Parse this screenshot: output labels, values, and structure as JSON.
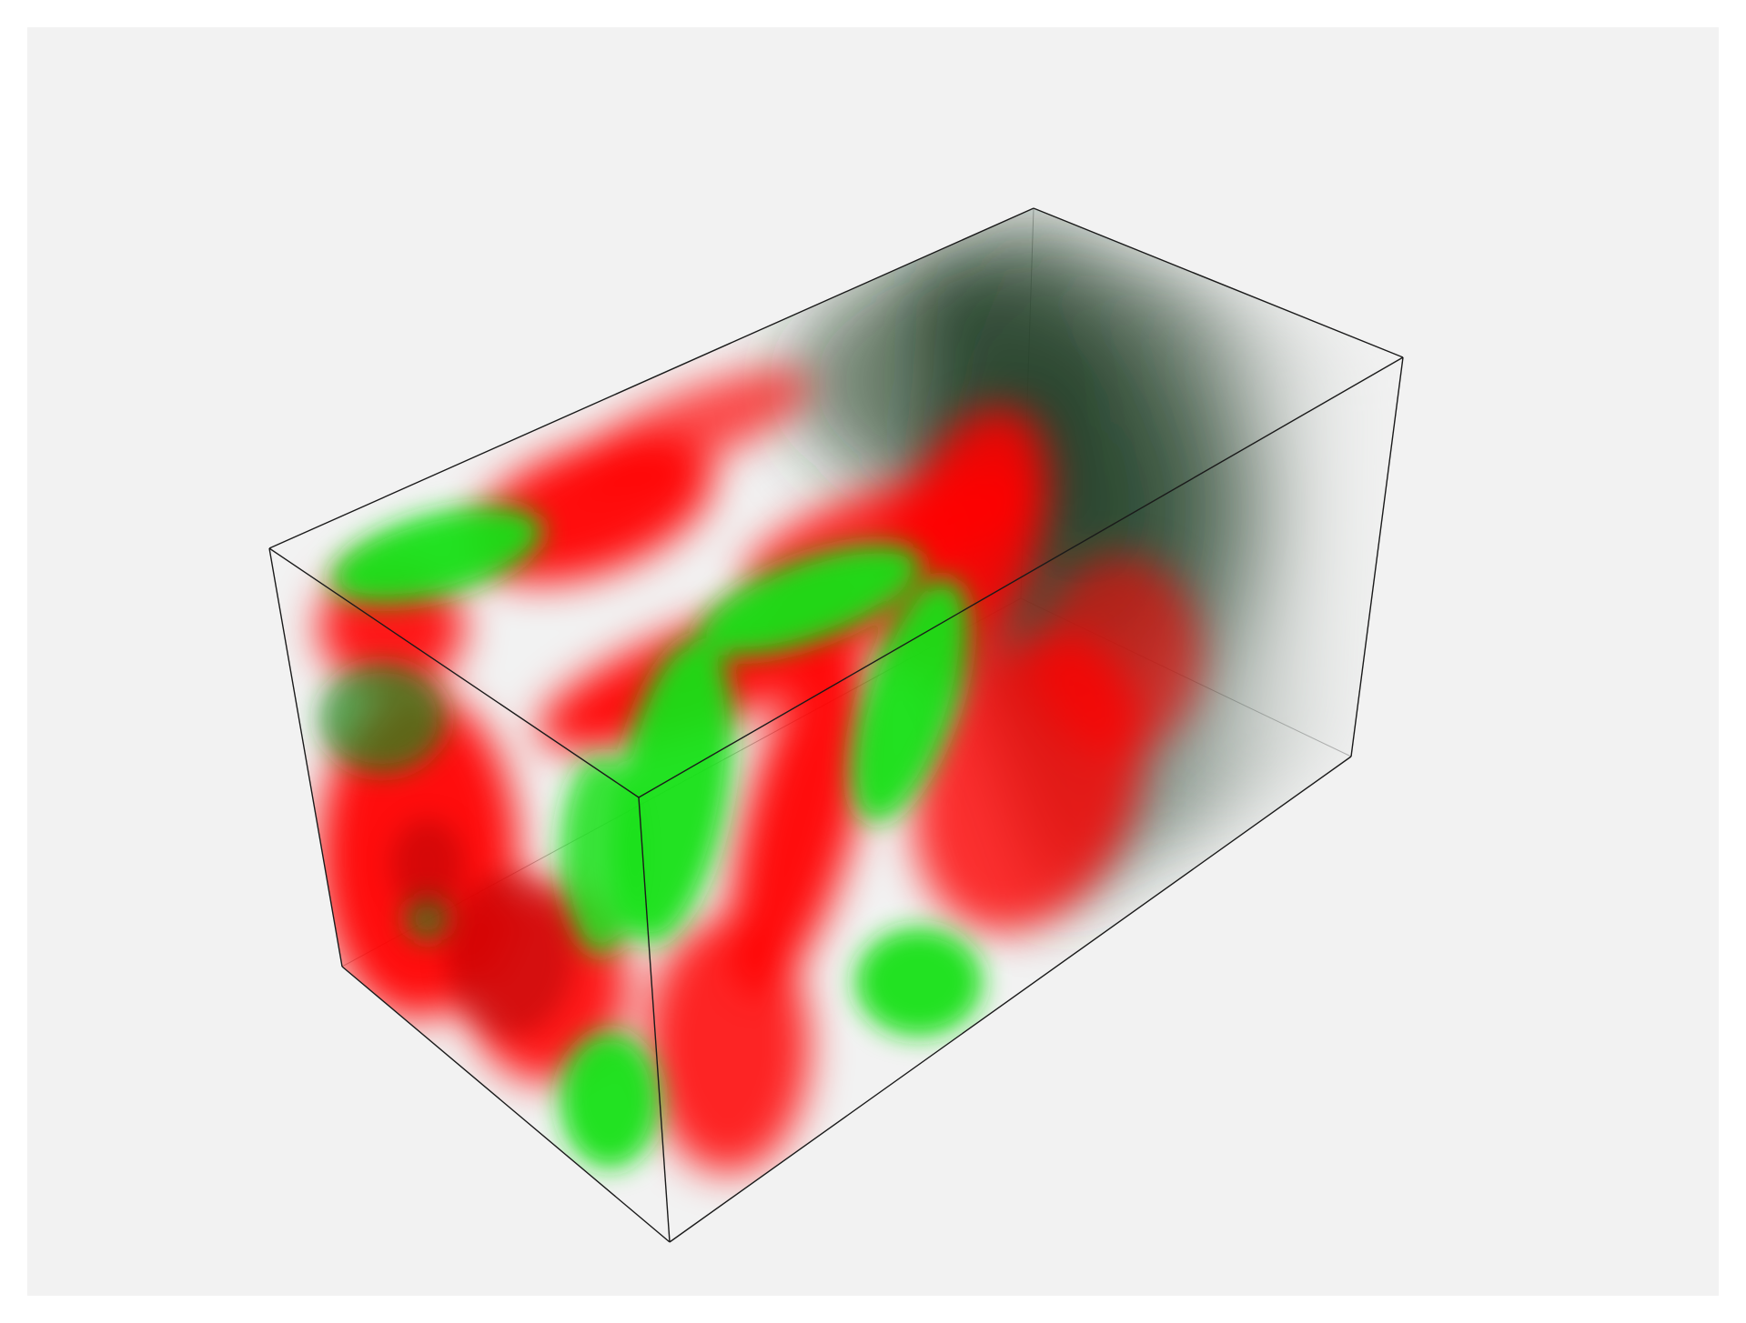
{
  "view": {
    "kind": "3d-volume-rendering",
    "background_color": "#f2f2f2",
    "frame_color": "#ffffff",
    "edge_color": "#1a1a1a",
    "colormap": {
      "high": "#ff0000",
      "low": "#14e014",
      "dark": "#1c3a22"
    },
    "bounding_box_visible": true,
    "labels": []
  }
}
